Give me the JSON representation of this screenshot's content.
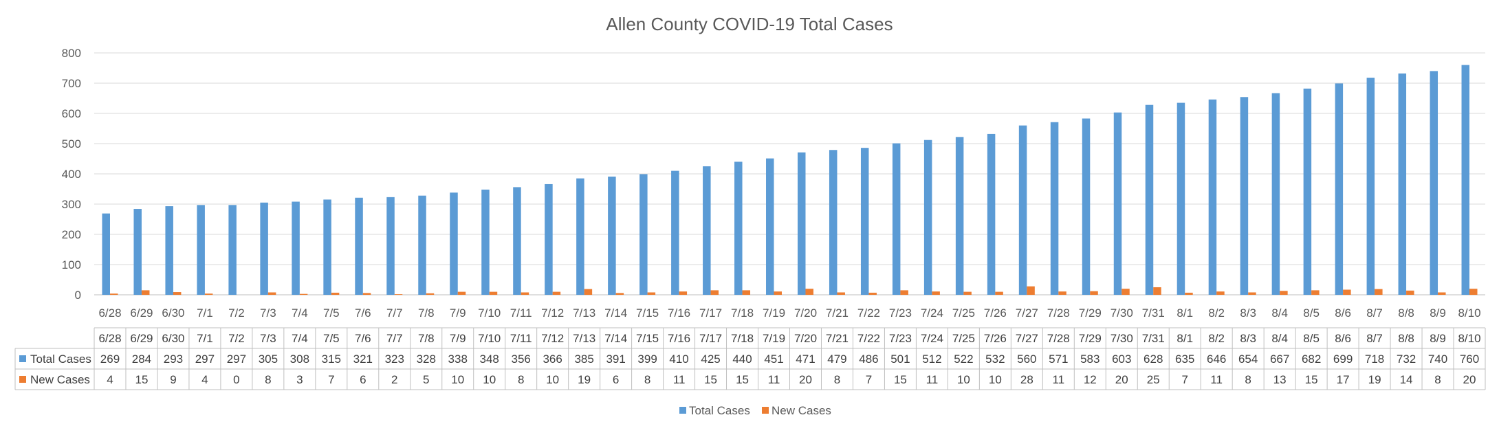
{
  "chart_data": {
    "type": "bar",
    "title": "Allen County COVID-19 Total Cases",
    "xlabel": "",
    "ylabel": "",
    "ylim": [
      0,
      800
    ],
    "yticks": [
      0,
      100,
      200,
      300,
      400,
      500,
      600,
      700,
      800
    ],
    "grid": true,
    "legend_position": "bottom",
    "has_data_table": true,
    "categories": [
      "6/28",
      "6/29",
      "6/30",
      "7/1",
      "7/2",
      "7/3",
      "7/4",
      "7/5",
      "7/6",
      "7/7",
      "7/8",
      "7/9",
      "7/10",
      "7/11",
      "7/12",
      "7/13",
      "7/14",
      "7/15",
      "7/16",
      "7/17",
      "7/18",
      "7/19",
      "7/20",
      "7/21",
      "7/22",
      "7/23",
      "7/24",
      "7/25",
      "7/26",
      "7/27",
      "7/28",
      "7/29",
      "7/30",
      "7/31",
      "8/1",
      "8/2",
      "8/3",
      "8/4",
      "8/5",
      "8/6",
      "8/7",
      "8/8",
      "8/9",
      "8/10"
    ],
    "series": [
      {
        "name": "Total Cases",
        "color": "#5B9BD5",
        "values": [
          269,
          284,
          293,
          297,
          297,
          305,
          308,
          315,
          321,
          323,
          328,
          338,
          348,
          356,
          366,
          385,
          391,
          399,
          410,
          425,
          440,
          451,
          471,
          479,
          486,
          501,
          512,
          522,
          532,
          560,
          571,
          583,
          603,
          628,
          635,
          646,
          654,
          667,
          682,
          699,
          718,
          732,
          740,
          760
        ]
      },
      {
        "name": "New Cases",
        "color": "#ED7D31",
        "values": [
          4,
          15,
          9,
          4,
          0,
          8,
          3,
          7,
          6,
          2,
          5,
          10,
          10,
          8,
          10,
          19,
          6,
          8,
          11,
          15,
          15,
          11,
          20,
          8,
          7,
          15,
          11,
          10,
          10,
          28,
          11,
          12,
          20,
          25,
          7,
          11,
          8,
          13,
          15,
          17,
          19,
          14,
          8,
          20
        ]
      }
    ]
  }
}
